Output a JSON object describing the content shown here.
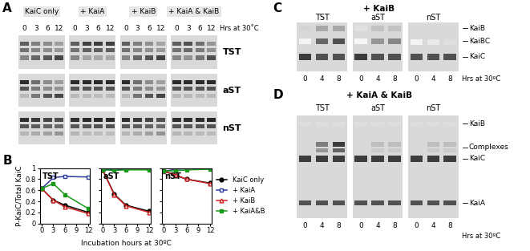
{
  "panels": {
    "A": {
      "label": "A",
      "groups": [
        "KaiC only",
        "+ KaiA",
        "+ KaiB",
        "+ KaiA & KaiB"
      ],
      "lanes": [
        "0",
        "3",
        "6",
        "12"
      ],
      "lane_axis_label": "Hrs at 30˚C",
      "rows": [
        "TST",
        "aST",
        "nST"
      ]
    },
    "B": {
      "label": "B",
      "xlabel": "Incubation hours at 30ºC",
      "ylabel": "P-KaiC/Total KaiC"
    },
    "C": {
      "label": "C",
      "title": "+ KaiB",
      "gels": [
        "TST",
        "aST",
        "nST"
      ],
      "lanes": [
        "0",
        "4",
        "8"
      ],
      "lane_axis_label": "Hrs at 30ºC",
      "bands": [
        "KaiB",
        "KaiBC",
        "KaiC"
      ]
    },
    "D": {
      "label": "D",
      "title": "+ KaiA & KaiB",
      "gels": [
        "TST",
        "aST",
        "nST"
      ],
      "lanes": [
        "0",
        "4",
        "8"
      ],
      "lane_axis_label": "Hrs at 30ºC",
      "bands": [
        "KaiB",
        "Complexes",
        "KaiC",
        "KaiA"
      ]
    }
  },
  "chart_data": [
    {
      "type": "line",
      "title": "TST",
      "x": [
        0,
        3,
        6,
        12
      ],
      "xlim": [
        -0.5,
        12.5
      ],
      "xticks": [
        0,
        3,
        6,
        9,
        12
      ],
      "ylim": [
        0,
        1
      ],
      "yticks": [
        0,
        0.2,
        0.4,
        0.6,
        0.8,
        1
      ],
      "tick_labels": true,
      "series": [
        {
          "name": "KaiC only",
          "color": "#000000",
          "marker": "filled circle",
          "values": [
            0.63,
            0.42,
            0.33,
            0.2
          ]
        },
        {
          "name": "+ KaiA",
          "color": "#2a3a9e",
          "marker": "open square",
          "values": [
            0.63,
            0.83,
            0.85,
            0.84
          ]
        },
        {
          "name": "+ KaiB",
          "color": "#cc2222",
          "marker": "open triangle",
          "values": [
            0.63,
            0.42,
            0.3,
            0.18
          ]
        },
        {
          "name": "+ KaiA&B",
          "color": "#1a9a1a",
          "marker": "filled square",
          "values": [
            0.63,
            0.72,
            0.52,
            0.27
          ]
        }
      ]
    },
    {
      "type": "line",
      "title": "aST",
      "x": [
        0,
        3,
        6,
        12
      ],
      "xlim": [
        -0.5,
        12.5
      ],
      "xticks": [
        0,
        3,
        6,
        9,
        12
      ],
      "ylim": [
        0,
        1
      ],
      "yticks": [
        0,
        0.2,
        0.4,
        0.6,
        0.8,
        1
      ],
      "tick_labels": "x",
      "series": [
        {
          "name": "KaiC only",
          "color": "#000000",
          "marker": "filled circle",
          "values": [
            0.97,
            0.53,
            0.33,
            0.22
          ]
        },
        {
          "name": "+ KaiA",
          "color": "#2a3a9e",
          "marker": "open square",
          "values": [
            0.97,
            0.97,
            0.98,
            0.98
          ]
        },
        {
          "name": "+ KaiB",
          "color": "#cc2222",
          "marker": "open triangle",
          "values": [
            0.97,
            0.52,
            0.32,
            0.2
          ]
        },
        {
          "name": "+ KaiA&B",
          "color": "#1a9a1a",
          "marker": "filled square",
          "values": [
            0.97,
            0.96,
            0.97,
            0.97
          ]
        }
      ]
    },
    {
      "type": "line",
      "title": "nST",
      "x": [
        0,
        3,
        6,
        12
      ],
      "xlim": [
        -0.5,
        12.5
      ],
      "xticks": [
        0,
        3,
        6,
        9,
        12
      ],
      "ylim": [
        0,
        1
      ],
      "yticks": [
        0,
        0.2,
        0.4,
        0.6,
        0.8,
        1
      ],
      "tick_labels": "x",
      "legend": "right",
      "series": [
        {
          "name": "KaiC only",
          "color": "#000000",
          "marker": "filled circle",
          "values": [
            0.95,
            0.87,
            0.8,
            0.73
          ]
        },
        {
          "name": "+ KaiA",
          "color": "#2a3a9e",
          "marker": "open square",
          "values": [
            0.94,
            0.98,
            0.99,
            0.99
          ]
        },
        {
          "name": "+ KaiB",
          "color": "#cc2222",
          "marker": "open triangle",
          "values": [
            0.95,
            0.88,
            0.8,
            0.72
          ]
        },
        {
          "name": "+ KaiA&B",
          "color": "#1a9a1a",
          "marker": "filled square",
          "values": [
            0.95,
            0.95,
            0.97,
            0.98
          ]
        }
      ]
    }
  ]
}
